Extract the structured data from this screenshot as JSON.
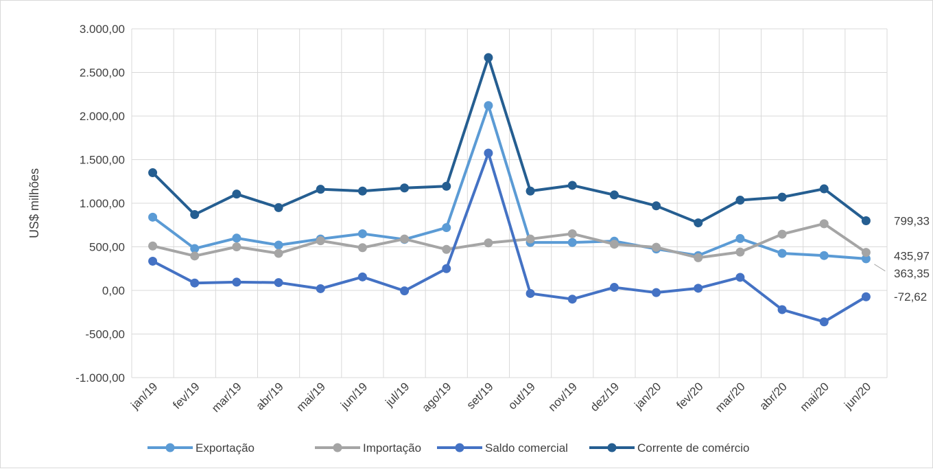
{
  "chart_data": {
    "type": "line",
    "title": "",
    "ylabel": "US$ milhões",
    "xlabel": "",
    "ylim": [
      -1000,
      3000
    ],
    "yticks": [
      -1000,
      -500,
      0,
      500,
      1000,
      1500,
      2000,
      2500,
      3000
    ],
    "ytick_labels": [
      "-1.000,00",
      "-500,00",
      "0,00",
      "500,00",
      "1.000,00",
      "1.500,00",
      "2.000,00",
      "2.500,00",
      "3.000,00"
    ],
    "grid": true,
    "legend_position": "bottom",
    "categories": [
      "jan/19",
      "fev/19",
      "mar/19",
      "abr/19",
      "mai/19",
      "jun/19",
      "jul/19",
      "ago/19",
      "set/19",
      "out/19",
      "nov/19",
      "dez/19",
      "jan/20",
      "fev/20",
      "mar/20",
      "abr/20",
      "mai/20",
      "jun/20"
    ],
    "series": [
      {
        "name": "Exportação",
        "color": "#5B9BD5",
        "values": [
          840,
          480,
          600,
          520,
          590,
          650,
          585,
          720,
          2120,
          550,
          550,
          565,
          475,
          400,
          595,
          425,
          400,
          363.35
        ],
        "end_label": "363,35"
      },
      {
        "name": "Importação",
        "color": "#A5A5A5",
        "values": [
          510,
          395,
          500,
          425,
          570,
          490,
          590,
          470,
          545,
          590,
          650,
          530,
          495,
          375,
          440,
          645,
          765,
          435.97
        ],
        "end_label": "435,97"
      },
      {
        "name": "Saldo comercial",
        "color": "#4472C4",
        "values": [
          335,
          85,
          95,
          90,
          20,
          155,
          -5,
          250,
          1575,
          -35,
          -100,
          35,
          -25,
          25,
          150,
          -220,
          -360,
          -72.62
        ],
        "end_label": "-72,62"
      },
      {
        "name": "Corrente de comércio",
        "color": "#255E91",
        "values": [
          1350,
          870,
          1105,
          950,
          1160,
          1140,
          1175,
          1195,
          2670,
          1140,
          1205,
          1095,
          970,
          775,
          1035,
          1070,
          1165,
          799.33
        ],
        "end_label": "799,33"
      }
    ]
  }
}
